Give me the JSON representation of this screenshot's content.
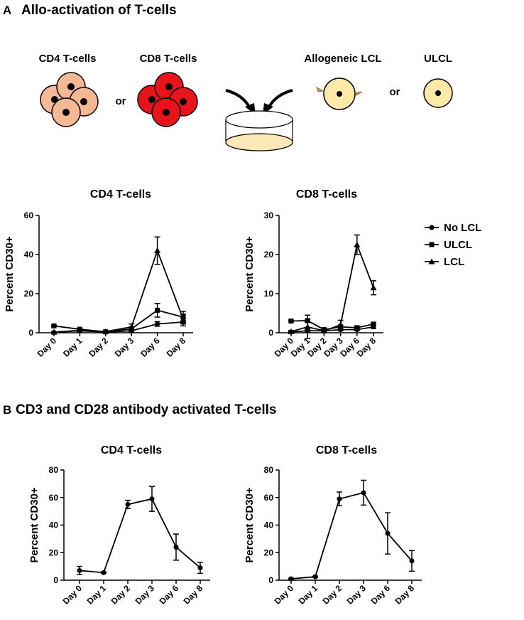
{
  "panel_a": {
    "label": "A",
    "title": "Allo-activation of T-cells"
  },
  "diagram": {
    "labels": [
      "CD4 T-cells",
      "CD8 T-cells",
      "or",
      "Allogeneic LCL",
      "ULCL",
      "or"
    ]
  },
  "panel_b": {
    "label": "B",
    "title": "CD3 and CD28 antibody activated T-cells"
  },
  "chart_data": [
    {
      "type": "line",
      "title": "CD4 T-cells",
      "ylabel": "Percent CD30+",
      "categories": [
        "Day 0",
        "Day 1",
        "Day 2",
        "Day 3",
        "Day 6",
        "Day 8"
      ],
      "ylim": [
        0,
        60
      ],
      "yticks": [
        0,
        20,
        40,
        60
      ],
      "color": "#000000",
      "series": [
        {
          "marker": "circle",
          "values": [
            0.2,
            1.0,
            0.3,
            1.0,
            4.5,
            5.5
          ],
          "errors": [
            0.2,
            0.3,
            0.2,
            0.5,
            1.2,
            2.0
          ]
        },
        {
          "marker": "square",
          "values": [
            3.5,
            1.8,
            0.5,
            2.0,
            11.5,
            8.0
          ],
          "errors": [
            0.4,
            0.4,
            0.3,
            0.8,
            3.5,
            3.0
          ]
        },
        {
          "marker": "triangle",
          "values": [
            0.3,
            1.2,
            0.6,
            3.0,
            42,
            7.0
          ],
          "errors": [
            0.2,
            0.4,
            0.3,
            1.5,
            7.0,
            2.5
          ]
        }
      ]
    },
    {
      "type": "line",
      "title": "CD8 T-cells",
      "ylabel": "Percent CD30+",
      "categories": [
        "Day 0",
        "Day 1",
        "Day 2",
        "Day 3",
        "Day 6",
        "Day 8"
      ],
      "ylim": [
        0,
        30
      ],
      "yticks": [
        0,
        10,
        20,
        30
      ],
      "color": "#000000",
      "series": [
        {
          "name": "No LCL",
          "marker": "circle",
          "values": [
            0.2,
            0.5,
            0.5,
            0.8,
            0.8,
            1.5
          ],
          "errors": [
            0.1,
            0.2,
            0.2,
            0.3,
            0.3,
            0.4
          ]
        },
        {
          "name": "ULCL",
          "marker": "square",
          "values": [
            3.0,
            3.1,
            0.8,
            1.5,
            1.3,
            2.2
          ],
          "errors": [
            0.2,
            0.4,
            0.2,
            0.4,
            0.3,
            0.4
          ]
        },
        {
          "name": "LCL",
          "marker": "triangle",
          "values": [
            0.3,
            1.5,
            0.5,
            2.0,
            22.5,
            11.5
          ],
          "errors": [
            0.3,
            3.0,
            0.3,
            1.2,
            2.5,
            1.8
          ]
        }
      ]
    },
    {
      "type": "line",
      "title": "CD4 T-cells",
      "ylabel": "Percent CD30+",
      "categories": [
        "Day 0",
        "Day 1",
        "Day 2",
        "Day 3",
        "Day 6",
        "Day 8"
      ],
      "ylim": [
        0,
        80
      ],
      "yticks": [
        0,
        20,
        40,
        60,
        80
      ],
      "color": "#000000",
      "series": [
        {
          "marker": "circle",
          "values": [
            7,
            5.5,
            55,
            59,
            24,
            9
          ],
          "errors": [
            3,
            0.5,
            3,
            9,
            9.5,
            4
          ]
        }
      ]
    },
    {
      "type": "line",
      "title": "CD8 T-cells",
      "ylabel": "Percent CD30+",
      "categories": [
        "Day 0",
        "Day 1",
        "Day 2",
        "Day 3",
        "Day 6",
        "Day 8"
      ],
      "ylim": [
        0,
        80
      ],
      "yticks": [
        0,
        20,
        40,
        60,
        80
      ],
      "color": "#000000",
      "series": [
        {
          "marker": "circle",
          "values": [
            1,
            2.5,
            59,
            63.5,
            34,
            14
          ],
          "errors": [
            0.5,
            0.5,
            5,
            9,
            15,
            7.5
          ]
        }
      ]
    }
  ]
}
